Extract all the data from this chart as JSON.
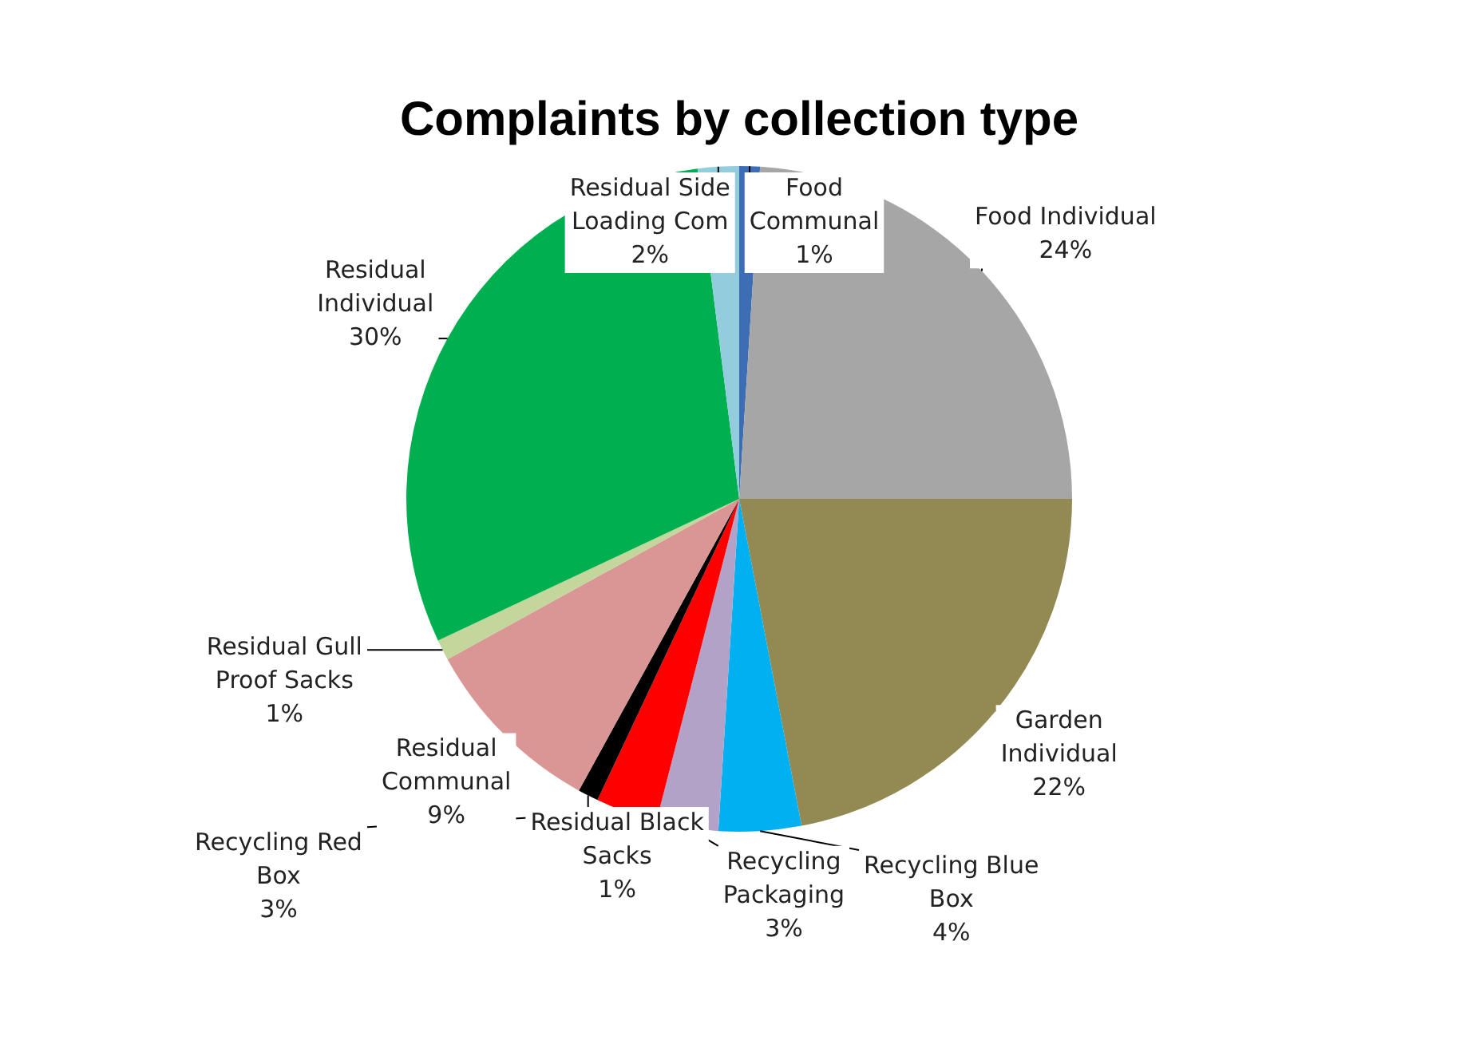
{
  "chart_data": {
    "type": "pie",
    "title": "Complaints by collection type",
    "categories": [
      "Food Communal",
      "Food Individual",
      "Garden Individual",
      "Recycling Blue Box",
      "Recycling Packaging",
      "Recycling Red Box",
      "Residual Black Sacks",
      "Residual Communal",
      "Residual Gull Proof Sacks",
      "Residual Individual",
      "Residual Side Loading Com"
    ],
    "values": [
      1,
      24,
      22,
      4,
      3,
      3,
      1,
      9,
      1,
      30,
      2
    ],
    "colors": [
      "#3d6eb5",
      "#a6a6a6",
      "#938953",
      "#00b0f0",
      "#b3a2c7",
      "#ff0000",
      "#000000",
      "#d99694",
      "#c3d69b",
      "#00b050",
      "#93cddd"
    ],
    "value_labels": [
      "1%",
      "24%",
      "22%",
      "4%",
      "3%",
      "3%",
      "1%",
      "9%",
      "1%",
      "30%",
      "2%"
    ],
    "legend": false
  }
}
